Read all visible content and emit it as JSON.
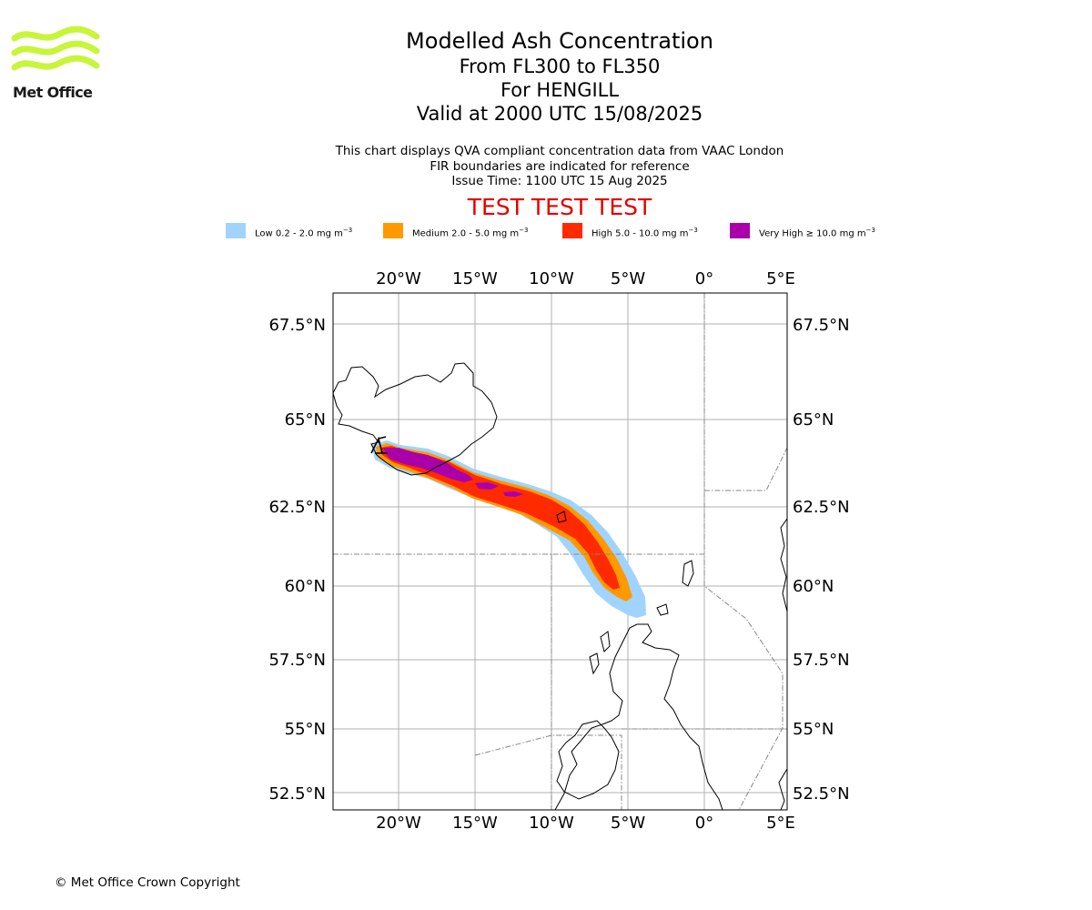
{
  "logo": {
    "text": "Met Office"
  },
  "title": {
    "line1": "Modelled Ash Concentration",
    "line2": "From FL300 to FL350",
    "line3": "For HENGILL",
    "line4": "Valid at 2000 UTC 15/08/2025"
  },
  "info": {
    "line1": "This chart displays QVA compliant concentration data from VAAC London",
    "line2": "FIR boundaries are indicated for reference",
    "line3": "Issue Time: 1100 UTC 15 Aug 2025"
  },
  "banner": "TEST TEST TEST",
  "legend": [
    {
      "prefix": "Low 0.2 - 2.0 mg m",
      "exp": "−3",
      "color": "#a0d4ff"
    },
    {
      "prefix": "Medium 2.0 - 5.0 mg m",
      "exp": "−3",
      "color": "#ff9900"
    },
    {
      "prefix": "High 5.0 - 10.0 mg m",
      "exp": "−3",
      "color": "#ff2a00"
    },
    {
      "prefix": "Very High  ≥  10.0 mg m",
      "exp": "−3",
      "color": "#aa00aa"
    }
  ],
  "map": {
    "lon_labels": [
      "20°W",
      "15°W",
      "10°W",
      "5°W",
      "0°",
      "5°E"
    ],
    "lat_labels": [
      "67.5°N",
      "65°N",
      "62.5°N",
      "60°N",
      "57.5°N",
      "55°N",
      "52.5°N"
    ]
  },
  "footer": "© Met Office Crown Copyright"
}
